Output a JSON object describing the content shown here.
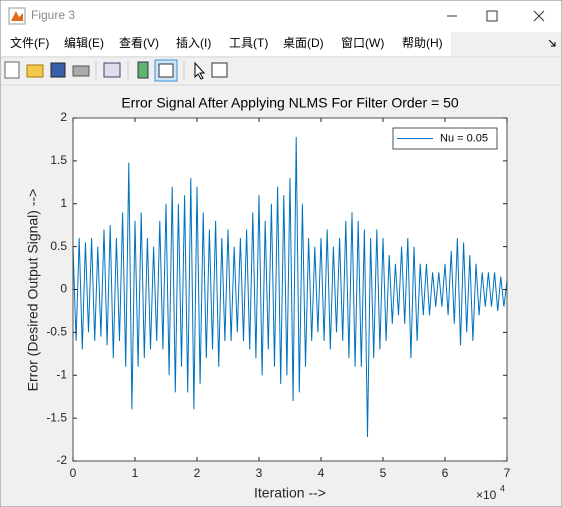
{
  "window": {
    "title": "Figure 3",
    "menu": [
      "文件(F)",
      "编辑(E)",
      "查看(V)",
      "插入(I)",
      "工具(T)",
      "桌面(D)",
      "窗口(W)",
      "帮助(H)"
    ]
  },
  "chart_data": {
    "type": "line",
    "title": "Error Signal After Applying NLMS For Filter Order = 50",
    "xlabel": "Iteration -->",
    "ylabel": "Error (Desired Output Signal) -->",
    "x_exponent": {
      "base": "×10",
      "power": "4"
    },
    "x": [
      0,
      500,
      1000,
      1500,
      2000,
      2500,
      3000,
      3500,
      4000,
      4500,
      5000,
      5500,
      6000,
      6500,
      7000,
      7500,
      8000,
      8500,
      9000,
      9500,
      10000,
      10500,
      11000,
      11500,
      12000,
      12500,
      13000,
      13500,
      14000,
      14500,
      15000,
      15500,
      16000,
      16500,
      17000,
      17500,
      18000,
      18500,
      19000,
      19500,
      20000,
      20500,
      21000,
      21500,
      22000,
      22500,
      23000,
      23500,
      24000,
      24500,
      25000,
      25500,
      26000,
      26500,
      27000,
      27500,
      28000,
      28500,
      29000,
      29500,
      30000,
      30500,
      31000,
      31500,
      32000,
      32500,
      33000,
      33500,
      34000,
      34500,
      35000,
      35500,
      36000,
      36500,
      37000,
      37500,
      38000,
      38500,
      39000,
      39500,
      40000,
      40500,
      41000,
      41500,
      42000,
      42500,
      43000,
      43500,
      44000,
      44500,
      45000,
      45500,
      46000,
      46500,
      47000,
      47500,
      48000,
      48500,
      49000,
      49500,
      50000,
      50500,
      51000,
      51500,
      52000,
      52500,
      53000,
      53500,
      54000,
      54500,
      55000,
      55500,
      56000,
      56500,
      57000,
      57500,
      58000,
      58500,
      59000,
      59500,
      60000,
      60500,
      61000,
      61500,
      62000,
      62500,
      63000,
      63500,
      64000,
      64500,
      65000,
      65500,
      66000,
      66500,
      67000,
      67500,
      68000,
      68500,
      69000,
      69500,
      70000
    ],
    "series": [
      {
        "name": "Nu = 0.05",
        "color": "#0072bd",
        "values": [
          0.5,
          -0.6,
          0.6,
          -0.7,
          0.55,
          -0.5,
          0.6,
          -0.6,
          0.5,
          -0.55,
          0.7,
          -0.65,
          0.75,
          -0.8,
          0.6,
          -0.6,
          0.9,
          -0.9,
          1.48,
          -1.4,
          0.8,
          -0.9,
          0.9,
          -0.8,
          0.6,
          -0.7,
          0.5,
          -0.6,
          0.8,
          -0.7,
          1.0,
          -1.0,
          1.2,
          -1.2,
          1.0,
          -0.9,
          1.1,
          -1.2,
          1.3,
          -1.4,
          1.2,
          -1.1,
          0.9,
          -0.8,
          0.7,
          -0.7,
          0.8,
          -0.9,
          0.6,
          -0.6,
          0.7,
          -0.6,
          0.5,
          -0.5,
          0.6,
          -0.6,
          0.7,
          -0.7,
          0.9,
          -0.8,
          1.1,
          -1.0,
          0.8,
          -0.7,
          1.0,
          -0.9,
          1.2,
          -1.1,
          1.1,
          -1.0,
          1.3,
          -1.3,
          1.78,
          -1.2,
          1.0,
          -0.9,
          0.6,
          -0.6,
          0.5,
          -0.5,
          0.6,
          -0.6,
          0.7,
          -0.7,
          0.5,
          -0.5,
          0.6,
          -0.6,
          0.8,
          -0.8,
          0.9,
          -0.9,
          0.8,
          -0.9,
          0.7,
          -1.72,
          0.6,
          -0.8,
          0.7,
          -0.7,
          0.6,
          -0.6,
          0.4,
          -0.4,
          0.3,
          -0.3,
          0.5,
          -0.4,
          0.6,
          -0.8,
          0.5,
          -0.6,
          0.3,
          -0.3,
          0.3,
          -0.3,
          0.2,
          -0.2,
          0.2,
          -0.2,
          0.3,
          -0.3,
          0.45,
          -0.4,
          0.6,
          -0.65,
          0.55,
          -0.5,
          0.4,
          -0.6,
          0.3,
          -0.3,
          0.2,
          -0.2,
          0.2,
          -0.2,
          0.2,
          -0.25,
          0.15,
          -0.2,
          0.1
        ]
      }
    ],
    "xlim": [
      0,
      70000
    ],
    "xticks": [
      {
        "value": 0,
        "label": "0"
      },
      {
        "value": 10000,
        "label": "1"
      },
      {
        "value": 20000,
        "label": "2"
      },
      {
        "value": 30000,
        "label": "3"
      },
      {
        "value": 40000,
        "label": "4"
      },
      {
        "value": 50000,
        "label": "5"
      },
      {
        "value": 60000,
        "label": "6"
      },
      {
        "value": 70000,
        "label": "7"
      }
    ],
    "ylim": [
      -2,
      2
    ],
    "yticks": [
      -2,
      -1.5,
      -1,
      -0.5,
      0,
      0.5,
      1,
      1.5,
      2
    ],
    "grid": false,
    "legend": "upper right"
  }
}
